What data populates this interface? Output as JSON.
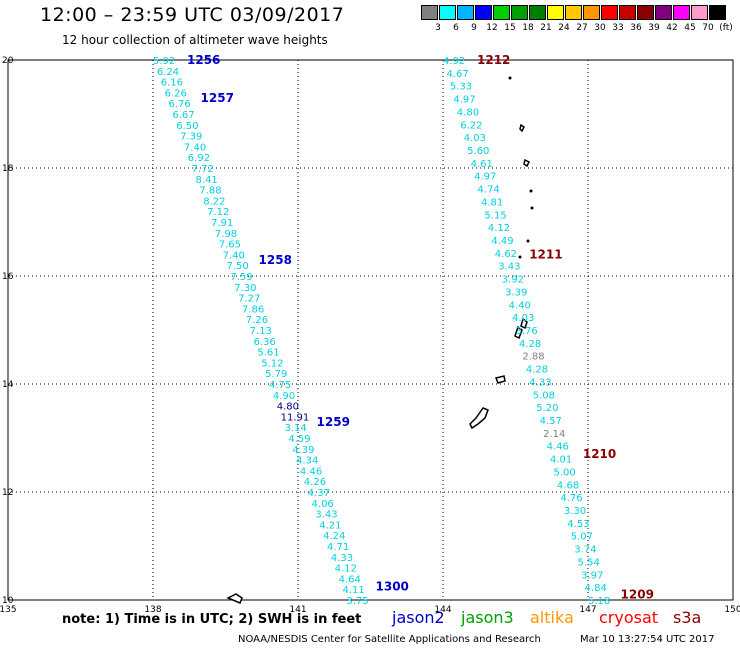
{
  "header": {
    "title": "12:00 – 23:59 UTC 03/09/2017",
    "subtitle": "12 hour collection of altimeter wave heights"
  },
  "colorbar": {
    "colors": [
      "#808080",
      "#00ffff",
      "#00b4ff",
      "#0000ff",
      "#00d000",
      "#00a000",
      "#008000",
      "#ffff00",
      "#ffc800",
      "#ff9600",
      "#ff0000",
      "#c80000",
      "#8b0000",
      "#800080",
      "#ff00ff",
      "#ff99cc",
      "#000000"
    ],
    "ticks": [
      "3",
      "6",
      "9",
      "12",
      "15",
      "18",
      "21",
      "24",
      "27",
      "30",
      "33",
      "36",
      "39",
      "42",
      "45",
      "70",
      "(ft)"
    ]
  },
  "axes": {
    "x_ticks": [
      "135",
      "138",
      "141",
      "144",
      "147",
      "150"
    ],
    "y_ticks": [
      "20",
      "18",
      "16",
      "14",
      "12",
      "10"
    ]
  },
  "chart_data": {
    "type": "scatter",
    "xlim": [
      135,
      150
    ],
    "ylim": [
      10,
      20
    ],
    "tracks": [
      {
        "start": [
          138.0,
          20.0
        ],
        "end": [
          142.0,
          10.0
        ],
        "values": [
          "5.92",
          "6.24",
          "6.16",
          "6.26",
          "6.76",
          "6.67",
          "6.50",
          "7.39",
          "7.40",
          "6.92",
          "7.72",
          "8.41",
          "7.88",
          "8.22",
          "7.12",
          "7.91",
          "7.98",
          "7.65",
          "7.40",
          "7.50",
          "7.59",
          "7.30",
          "7.27",
          "7.86",
          "7.26",
          "7.13",
          "6.36",
          "5.61",
          "5.12",
          "5.79",
          "4.75",
          "4.90",
          "4.80",
          "11.91",
          "3.14",
          "4.59",
          "4.39",
          "4.34",
          "4.46",
          "4.26",
          "4.37",
          "4.06",
          "3.43",
          "4.21",
          "4.24",
          "4.71",
          "4.33",
          "4.12",
          "4.64",
          "4.11",
          "3.75"
        ],
        "colors": {
          "4.80": "#000080",
          "11.91": "#000080"
        },
        "passes": [
          {
            "label": "1256",
            "y": 20.0
          },
          {
            "label": "1257",
            "y": 19.3
          },
          {
            "label": "1258",
            "y": 16.3
          },
          {
            "label": "1259",
            "y": 13.3
          },
          {
            "label": "1300",
            "y": 10.25
          }
        ],
        "pass_color": "#0000cc"
      },
      {
        "start": [
          144.0,
          20.0
        ],
        "end": [
          147.0,
          10.0
        ],
        "values": [
          "4.92",
          "4.67",
          "5.33",
          "4.97",
          "4.80",
          "6.22",
          "4.03",
          "5.60",
          "4.61",
          "4.97",
          "4.74",
          "4.81",
          "5.15",
          "4.12",
          "4.49",
          "4.62",
          "3.43",
          "3.92",
          "3.39",
          "4.40",
          "4.03",
          "3.76",
          "4.28",
          "2.88",
          "4.28",
          "4.33",
          "5.08",
          "5.20",
          "4.57",
          "2.14",
          "4.46",
          "4.01",
          "5.00",
          "4.68",
          "4.76",
          "3.30",
          "4.53",
          "5.07",
          "3.74",
          "5.54",
          "3.97",
          "4.84",
          "5.18"
        ],
        "colors": {
          "2.88": "#808080",
          "2.14": "#808080"
        },
        "passes": [
          {
            "label": "1212",
            "y": 20.0
          },
          {
            "label": "1211",
            "y": 16.4
          },
          {
            "label": "1210",
            "y": 12.7
          },
          {
            "label": "1209",
            "y": 10.1
          }
        ],
        "pass_color": "#8b0000"
      }
    ]
  },
  "footer": {
    "note": "note: 1) Time is in UTC; 2) SWH is in feet",
    "legend": [
      {
        "label": "jason2",
        "color": "#0000cc"
      },
      {
        "label": "jason3",
        "color": "#00a000"
      },
      {
        "label": "altika",
        "color": "#ff9600"
      },
      {
        "label": "cryosat",
        "color": "#ff0000"
      },
      {
        "label": "s3a",
        "color": "#8b0000"
      }
    ],
    "credit": "NOAA/NESDIS Center for Satellite Applications and Research",
    "timestamp": "Mar 10 13:27:54 UTC 2017"
  }
}
